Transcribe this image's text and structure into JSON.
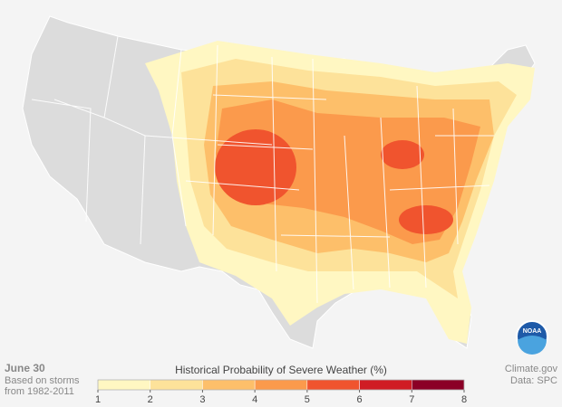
{
  "date": "June 30",
  "note": [
    "Based on storms",
    "from 1982-2011"
  ],
  "legend": {
    "title": "Historical Probability of Severe Weather (%)",
    "ticks": [
      1,
      2,
      3,
      4,
      5,
      6,
      7,
      8
    ],
    "colors": [
      "#fff7c2",
      "#fde29a",
      "#fdbf6a",
      "#fb9a4c",
      "#f0542e",
      "#d01c24",
      "#8b0026"
    ]
  },
  "credit": [
    "Climate.gov",
    "Data: SPC"
  ],
  "logo": "NOAA"
}
